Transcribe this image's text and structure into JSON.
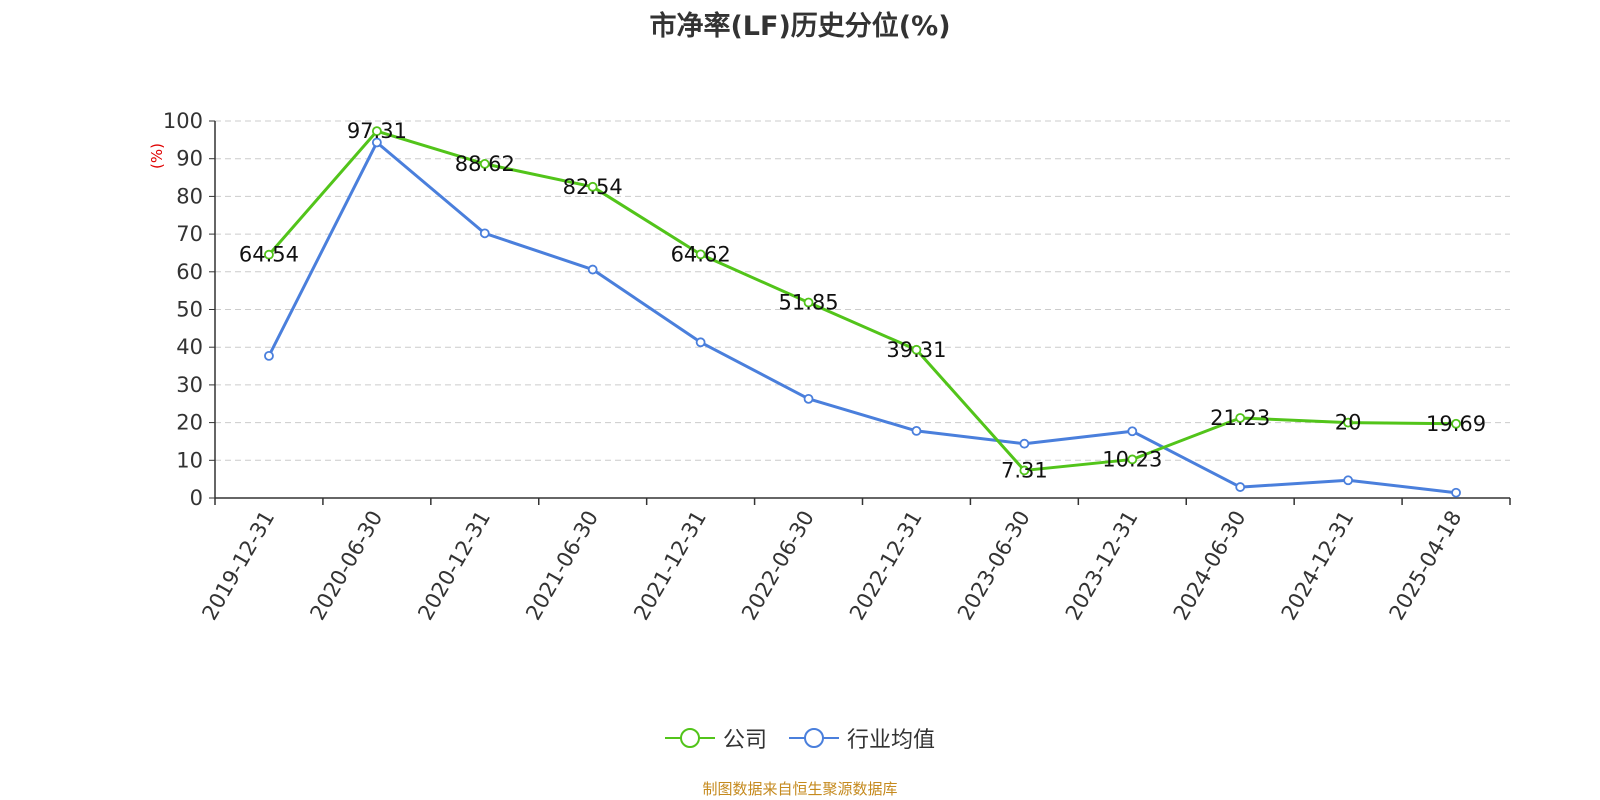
{
  "chart_data": {
    "type": "line",
    "title": "市净率(LF)历史分位(%)",
    "ylabel": "(%)",
    "xlabel": "",
    "ylim": [
      0,
      100
    ],
    "yticks": [
      0,
      10,
      20,
      30,
      40,
      50,
      60,
      70,
      80,
      90,
      100
    ],
    "grid": true,
    "legend_position": "bottom",
    "categories": [
      "2019-12-31",
      "2020-06-30",
      "2020-12-31",
      "2021-06-30",
      "2021-12-31",
      "2022-06-30",
      "2022-12-31",
      "2023-06-30",
      "2023-12-31",
      "2024-06-30",
      "2024-12-31",
      "2025-04-18"
    ],
    "series": [
      {
        "name": "公司",
        "color": "#52c41a",
        "show_labels": true,
        "values": [
          64.54,
          97.31,
          88.62,
          82.54,
          64.62,
          51.85,
          39.31,
          7.31,
          10.23,
          21.23,
          20,
          19.69
        ],
        "labels": [
          "64.54",
          "97.31",
          "88.62",
          "82.54",
          "64.62",
          "51.85",
          "39.31",
          "7.31",
          "10.23",
          "21.23",
          "20",
          "19.69"
        ]
      },
      {
        "name": "行业均值",
        "color": "#4a7fdc",
        "show_labels": false,
        "values": [
          37.7,
          94.3,
          70.2,
          60.6,
          41.3,
          26.3,
          17.8,
          14.4,
          17.7,
          2.9,
          4.7,
          1.4
        ]
      }
    ]
  },
  "source_note": "制图数据来自恒生聚源数据库"
}
